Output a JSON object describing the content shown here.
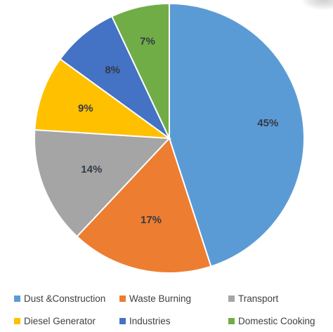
{
  "chart_data": {
    "type": "pie",
    "title": "",
    "categories": [
      "Dust &Construction",
      "Waste Burning",
      "Transport",
      "Diesel Generator",
      "Industries",
      "Domestic Cooking"
    ],
    "values": [
      45,
      17,
      14,
      9,
      8,
      7
    ],
    "labels": [
      "45%",
      "17%",
      "14%",
      "9%",
      "8%",
      "7%"
    ],
    "colors": [
      "#5b9bd5",
      "#ed7d31",
      "#a5a5a5",
      "#ffc000",
      "#4472c4",
      "#70ad47"
    ],
    "start_angle": "top, clockwise",
    "legend_position": "bottom"
  },
  "legend": {
    "items": [
      {
        "label": "Dust &Construction",
        "color": "#5b9bd5"
      },
      {
        "label": "Waste Burning",
        "color": "#ed7d31"
      },
      {
        "label": "Transport",
        "color": "#a5a5a5"
      },
      {
        "label": "Diesel Generator",
        "color": "#ffc000"
      },
      {
        "label": "Industries",
        "color": "#4472c4"
      },
      {
        "label": "Domestic Cooking",
        "color": "#70ad47"
      }
    ]
  }
}
